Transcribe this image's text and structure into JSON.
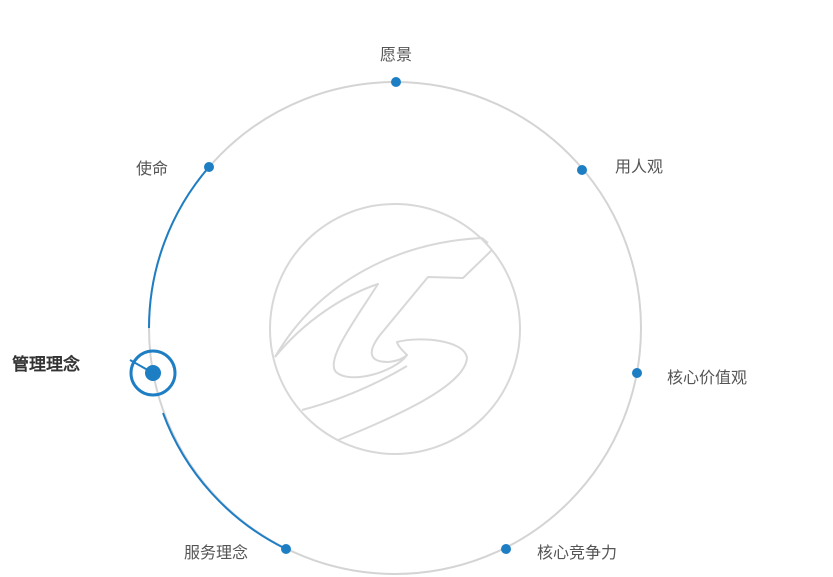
{
  "colors": {
    "accent": "#1e7ec4",
    "ring": "#d4d4d4",
    "logo": "#d8d8d8",
    "text": "#555555",
    "active_text": "#333333"
  },
  "logo": {
    "icon": "company-swirl-logo"
  },
  "nodes": [
    {
      "label": "愿景",
      "active": false
    },
    {
      "label": "用人观",
      "active": false
    },
    {
      "label": "核心价值观",
      "active": false
    },
    {
      "label": "核心竞争力",
      "active": false
    },
    {
      "label": "服务理念",
      "active": false
    },
    {
      "label": "管理理念",
      "active": true
    },
    {
      "label": "使命",
      "active": false
    }
  ]
}
